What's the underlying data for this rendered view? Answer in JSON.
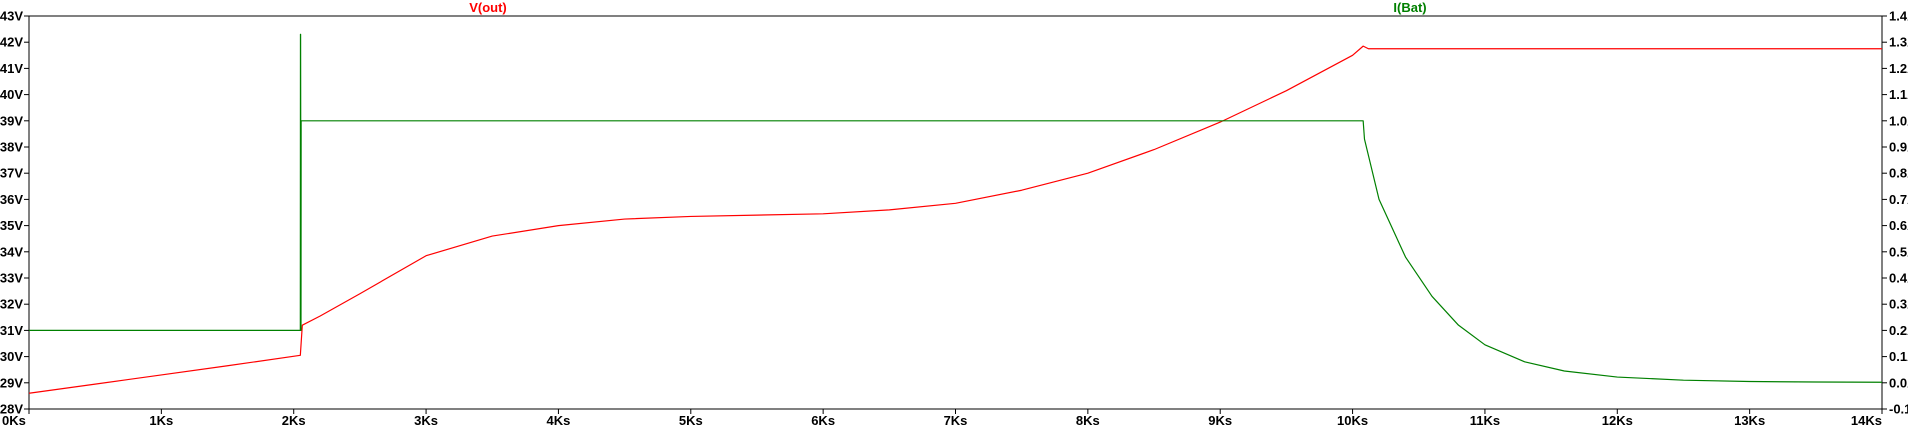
{
  "chart_data": {
    "type": "line",
    "title": "",
    "x": {
      "label": "",
      "lim": [
        0,
        14000
      ],
      "ticks": [
        0,
        1000,
        2000,
        3000,
        4000,
        5000,
        6000,
        7000,
        8000,
        9000,
        10000,
        11000,
        12000,
        13000,
        14000
      ],
      "tick_labels": [
        "0Ks",
        "1Ks",
        "2Ks",
        "3Ks",
        "4Ks",
        "5Ks",
        "6Ks",
        "7Ks",
        "8Ks",
        "9Ks",
        "10Ks",
        "11Ks",
        "12Ks",
        "13Ks",
        "14Ks"
      ]
    },
    "y_left": {
      "label": "",
      "lim": [
        28,
        43
      ],
      "ticks": [
        28,
        29,
        30,
        31,
        32,
        33,
        34,
        35,
        36,
        37,
        38,
        39,
        40,
        41,
        42,
        43
      ],
      "tick_labels": [
        "28V",
        "29V",
        "30V",
        "31V",
        "32V",
        "33V",
        "34V",
        "35V",
        "36V",
        "37V",
        "38V",
        "39V",
        "40V",
        "41V",
        "42V",
        "43V"
      ]
    },
    "y_right": {
      "label": "",
      "lim": [
        -0.1,
        1.4
      ],
      "ticks": [
        -0.1,
        0.0,
        0.1,
        0.2,
        0.3,
        0.4,
        0.5,
        0.6,
        0.7,
        0.8,
        0.9,
        1.0,
        1.1,
        1.2,
        1.3,
        1.4
      ],
      "tick_labels": [
        "-0.1A",
        "0.0A",
        "0.1A",
        "0.2A",
        "0.3A",
        "0.4A",
        "0.5A",
        "0.6A",
        "0.7A",
        "0.8A",
        "0.9A",
        "1.0A",
        "1.1A",
        "1.2A",
        "1.3A",
        "1.4A"
      ]
    },
    "grid": false,
    "legend": "top trace titles",
    "series": [
      {
        "name": "V(out)",
        "axis": "left",
        "color": "#ff0000",
        "x": [
          0,
          500,
          1000,
          1500,
          2050,
          2065,
          2200,
          2500,
          3000,
          3500,
          4000,
          4500,
          5000,
          5500,
          6000,
          6500,
          7000,
          7500,
          8000,
          8500,
          9000,
          9500,
          10000,
          10080,
          10120,
          11000,
          12000,
          13000,
          14000
        ],
        "y": [
          28.6,
          28.95,
          29.3,
          29.65,
          30.05,
          31.2,
          31.55,
          32.4,
          33.85,
          34.6,
          35.0,
          35.25,
          35.35,
          35.4,
          35.45,
          35.6,
          35.85,
          36.35,
          37.0,
          37.9,
          38.95,
          40.15,
          41.5,
          41.85,
          41.75,
          41.75,
          41.75,
          41.75,
          41.75
        ]
      },
      {
        "name": "I(Bat)",
        "axis": "right",
        "color": "#008000",
        "x": [
          0,
          2050,
          2051,
          2052,
          2055,
          2056,
          2060,
          2500,
          3000,
          4000,
          5000,
          6000,
          7000,
          8000,
          9000,
          10000,
          10080,
          10090,
          10200,
          10400,
          10600,
          10800,
          11000,
          11300,
          11600,
          12000,
          12500,
          13000,
          13500,
          14000
        ],
        "y": [
          0.2,
          0.2,
          1.33,
          1.33,
          0.2,
          1.0,
          1.0,
          1.0,
          1.0,
          1.0,
          1.0,
          1.0,
          1.0,
          1.0,
          1.0,
          1.0,
          1.0,
          0.93,
          0.7,
          0.48,
          0.33,
          0.22,
          0.145,
          0.08,
          0.045,
          0.022,
          0.01,
          0.005,
          0.003,
          0.002
        ]
      }
    ]
  }
}
